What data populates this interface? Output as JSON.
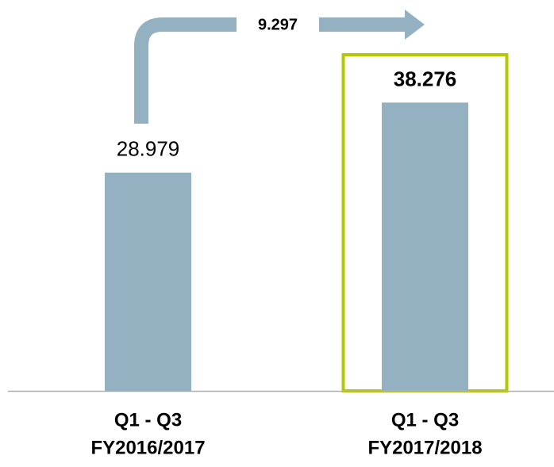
{
  "chart_data": {
    "type": "bar",
    "categories": [
      [
        "Q1 - Q3",
        "FY2016/2017"
      ],
      [
        "Q1 - Q3",
        "FY2017/2018"
      ]
    ],
    "values": [
      28.979,
      38.276
    ],
    "color": "#93b1c1",
    "ylim": [
      0,
      50
    ],
    "difference": 9.297,
    "highlight_index": 1,
    "highlight_color": "#b5c900"
  }
}
